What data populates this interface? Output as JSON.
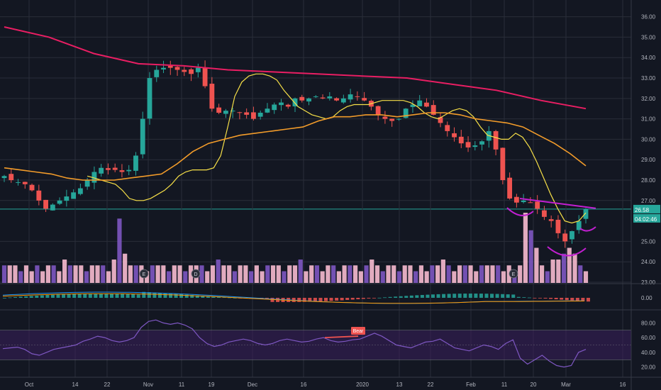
{
  "colors": {
    "background": "#131722",
    "grid": "#2a2e39",
    "up": "#26a69a",
    "down": "#ef5350",
    "ma_fast": "#f7e048",
    "ma_mid": "#f39c2a",
    "ma_slow": "#e91e63",
    "trendline": "#c21fd1",
    "price_line": "#26a69a",
    "vol_up": "#f8bbd0",
    "vol_down": "#7e57c2",
    "macd": "#2196f3",
    "signal": "#ff9800",
    "rsi": "#7e57c2",
    "rsi_band": "#3b1f5c",
    "axis_text": "#b2b5be"
  },
  "price_axis": {
    "ticks": [
      "36.00",
      "35.00",
      "34.00",
      "33.00",
      "32.00",
      "31.00",
      "30.00",
      "29.00",
      "28.00",
      "27.00",
      "26.58",
      "25.00",
      "24.00",
      "23.00"
    ],
    "last_price": "26.58",
    "countdown": "04:02:46"
  },
  "macd_axis": {
    "ticks": [
      "0.00"
    ]
  },
  "rsi_axis": {
    "ticks": [
      "80.00",
      "60.00",
      "40.00",
      "20.00"
    ]
  },
  "time_axis": {
    "labels": [
      "Oct",
      "14",
      "22",
      "Nov",
      "11",
      "19",
      "Dec",
      "16",
      "2020",
      "13",
      "22",
      "Feb",
      "11",
      "20",
      "Mar",
      "16"
    ]
  },
  "event_markers": [
    "E",
    "D",
    "E"
  ],
  "divergence_label": "Bear",
  "chart_data": {
    "type": "candlestick",
    "price_range": [
      23,
      36.3
    ],
    "series": [
      {
        "name": "",
        "values": [
          28.2,
          28.0,
          27.9,
          27.8,
          27.5,
          27.0,
          26.6,
          26.8,
          27.0,
          27.2,
          27.4,
          27.6,
          28.0,
          28.4,
          28.6,
          28.5,
          28.5,
          28.4,
          28.5,
          29.2,
          31.0,
          33.0,
          33.4,
          33.5,
          33.5,
          33.4,
          33.3,
          33.2,
          33.5,
          32.6,
          31.5,
          31.3,
          31.4,
          31.4,
          31.3,
          31.2,
          31.0,
          31.3,
          31.5,
          31.7,
          31.8,
          31.6,
          32.0,
          31.9,
          32.0,
          32.1,
          32.0,
          32.1,
          31.9,
          32.0,
          32.2,
          32.1,
          31.9,
          31.6,
          31.2,
          31.0,
          30.9,
          31.0,
          31.5,
          31.7,
          31.9,
          31.6,
          31.2,
          30.8,
          30.4,
          30.1,
          29.8,
          29.6,
          29.7,
          29.9,
          30.4,
          29.5,
          28.0,
          27.1,
          26.9,
          27.0,
          26.9,
          26.6,
          26.2,
          26.0,
          25.4,
          25.0,
          25.5,
          26.0,
          26.58
        ]
      },
      {
        "name": "",
        "values": [
          28.2,
          28.1,
          28.0,
          27.9,
          27.8,
          27.5,
          27.1,
          27.0,
          27.0,
          27.1,
          27.3,
          27.5,
          27.8,
          28.2,
          28.4,
          28.5,
          28.5,
          28.5,
          28.6,
          29.2,
          30.6,
          32.1,
          32.8,
          33.1,
          33.2,
          33.2,
          33.1,
          32.9,
          32.4,
          32.0,
          31.6,
          31.4,
          31.2,
          31.1,
          31.0,
          31.1,
          31.4,
          31.6,
          31.7,
          31.7,
          31.7,
          31.8,
          31.9,
          31.9,
          31.9,
          31.9,
          31.8,
          31.6,
          31.3,
          31.1,
          31.0,
          31.2,
          31.4,
          31.5,
          31.4,
          31.1,
          30.6,
          30.2,
          30.1,
          30.0,
          30.0,
          30.3,
          30.1,
          29.6,
          28.9,
          28.1,
          27.3,
          26.6,
          26.0,
          25.9,
          26.0,
          26.4
        ]
      },
      {
        "name": "",
        "values": [
          28.6,
          28.5,
          28.4,
          28.3,
          28.1,
          28.0,
          28.0,
          28.0,
          28.1,
          28.2,
          28.3,
          28.8,
          29.4,
          29.8,
          30.0,
          30.2,
          30.3,
          30.4,
          30.5,
          30.6,
          30.9,
          31.1,
          31.1,
          31.2,
          31.2,
          31.1,
          31.2,
          31.3,
          31.3,
          31.2,
          31.0,
          30.9,
          30.8,
          30.6,
          30.2,
          29.8,
          29.3,
          28.7
        ]
      },
      {
        "name": "",
        "values": [
          35.5,
          35.0,
          34.2,
          33.7,
          33.6,
          33.4,
          33.3,
          33.2,
          33.1,
          33.0,
          32.7,
          32.4,
          31.9,
          31.5
        ]
      }
    ],
    "volume": [
      3,
      3,
      3,
      2,
      3,
      2,
      3,
      2,
      3,
      3,
      2,
      4,
      3,
      3,
      3,
      2,
      3,
      3,
      3,
      2,
      4,
      11,
      5,
      3,
      3,
      3,
      2,
      3,
      3,
      3,
      2,
      3,
      3,
      2,
      3,
      3,
      3,
      2,
      3,
      4,
      3,
      3,
      2,
      3,
      3,
      2,
      3,
      2,
      3,
      3,
      3,
      2,
      3,
      3,
      4,
      2,
      3,
      3,
      2,
      3,
      3,
      2,
      3,
      3,
      3,
      2,
      3,
      4,
      3,
      2,
      3,
      3,
      2,
      3,
      3,
      2,
      3,
      2,
      3,
      3,
      4,
      3,
      2,
      3,
      3,
      3,
      2,
      3,
      3,
      3,
      3,
      2,
      3,
      2,
      3,
      12,
      9,
      6,
      3,
      2,
      4,
      4,
      5,
      6,
      5,
      3,
      2
    ]
  }
}
